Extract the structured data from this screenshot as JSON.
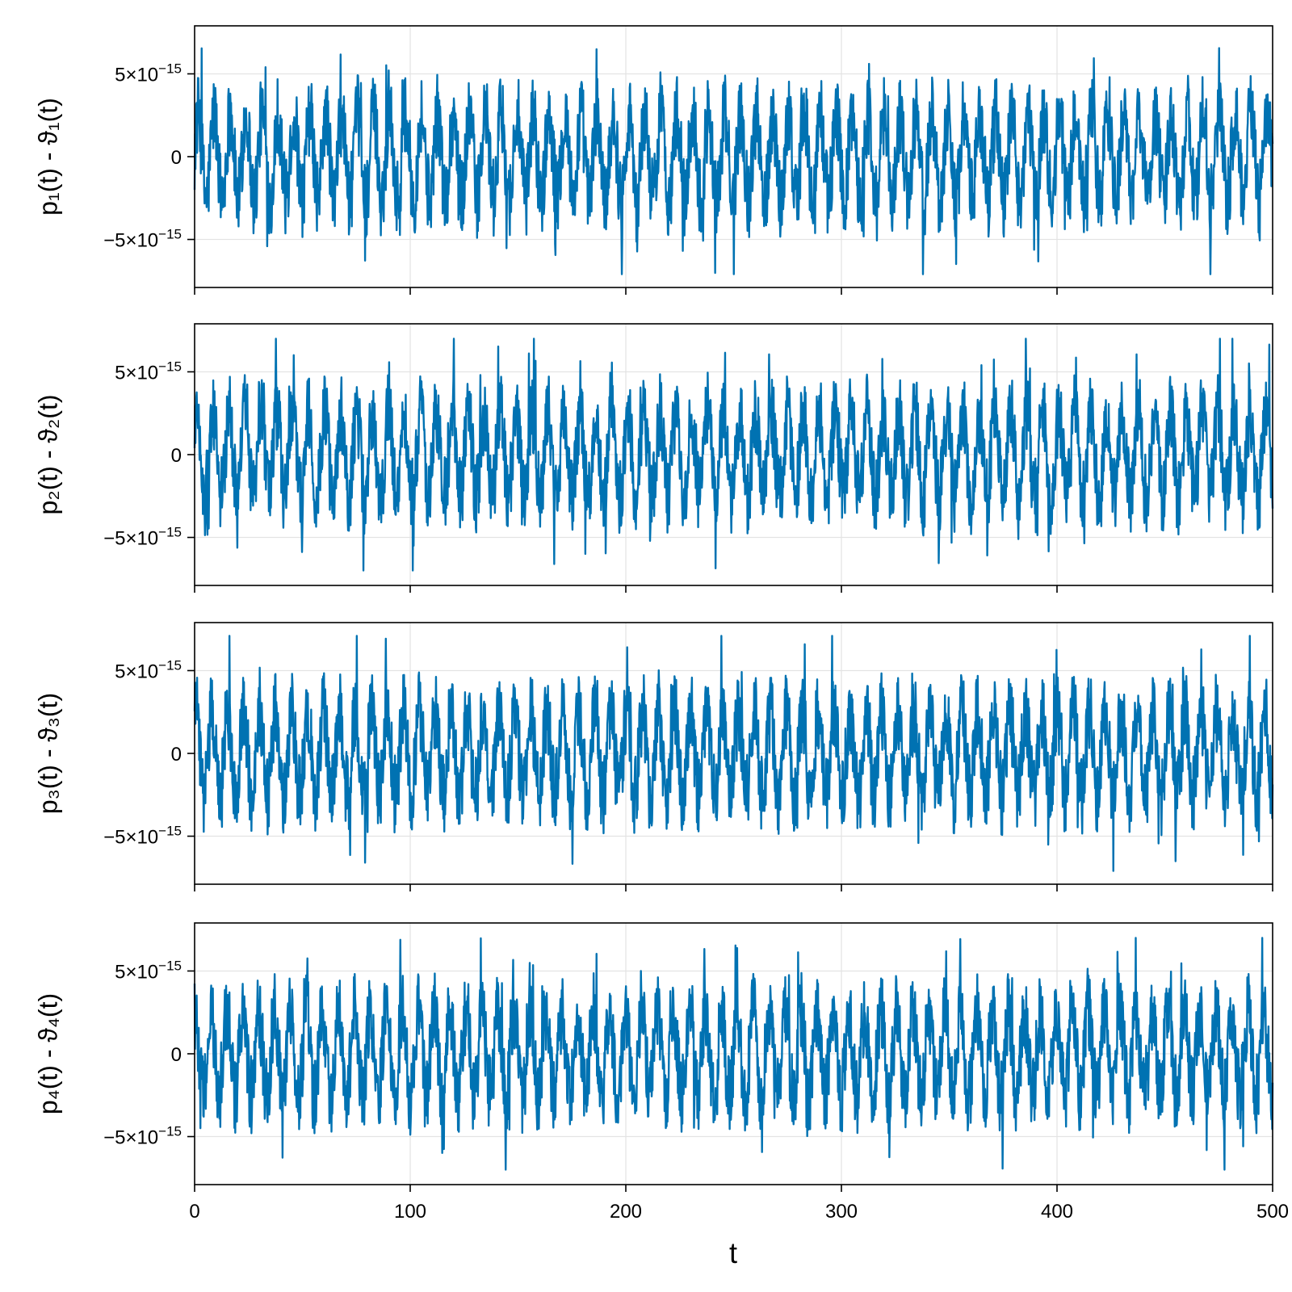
{
  "chart_data": {
    "type": "line",
    "layout": "stacked",
    "shared_x": true,
    "color": "#0072b2",
    "grid": true,
    "xlabel": "t",
    "xlim": [
      0,
      500
    ],
    "xticks": [
      0,
      100,
      200,
      300,
      400,
      500
    ],
    "x_tick_labels": [
      "0",
      "100",
      "200",
      "300",
      "400",
      "500"
    ],
    "ylim": [
      -7.9e-15,
      7.9e-15
    ],
    "yticks": [
      -5e-15,
      0,
      5e-15
    ],
    "y_tick_labels": [
      {
        "mantissa": "−5×10",
        "exponent": "−15"
      },
      {
        "mantissa": "0",
        "exponent": ""
      },
      {
        "mantissa": "5×10",
        "exponent": "−15"
      }
    ],
    "panels": [
      {
        "ylabel": "p₁(t) - ϑ₁(t)",
        "y_abs_max": 7.1e-15
      },
      {
        "ylabel": "p₂(t) - ϑ₂(t)",
        "y_abs_max": 7e-15
      },
      {
        "ylabel": "p₃(t) - ϑ₃(t)",
        "y_abs_max": 7.1e-15
      },
      {
        "ylabel": "p₄(t) - ϑ₄(t)",
        "y_abs_max": 7e-15
      }
    ],
    "sampling": {
      "n_points": 2600,
      "dominant_period": 7.4
    },
    "description_of_values": "Oscillatory residuals of order 1e-15, bounded between roughly -7e-15 and 7e-15 over t in [0, 500]"
  }
}
